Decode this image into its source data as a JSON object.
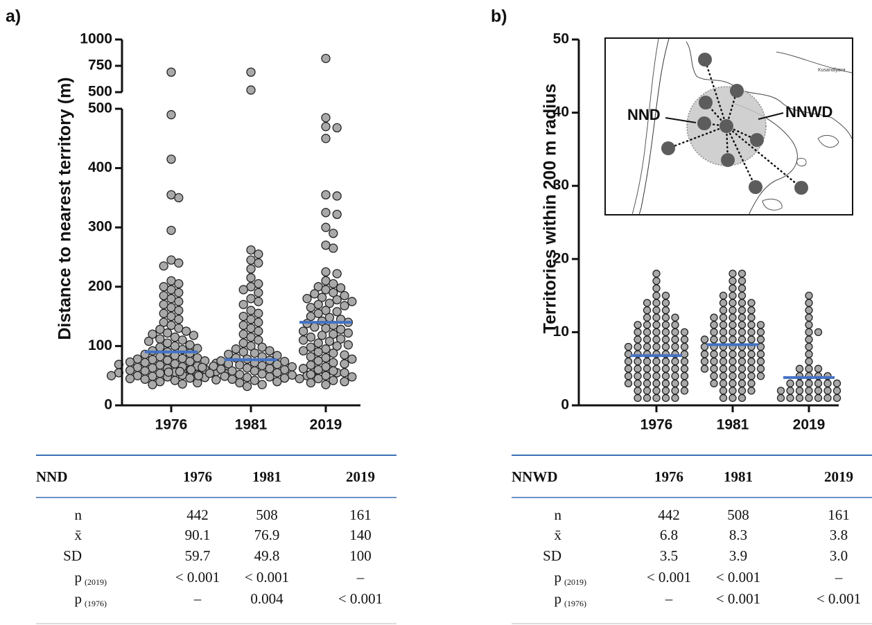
{
  "chart_data": [
    {
      "type": "swarm",
      "panel": "a)",
      "ylabel": "Distance to nearest territory (m)",
      "categories": [
        "1976",
        "1981",
        "2019"
      ],
      "ylim": [
        0,
        500
      ],
      "yticks": [
        0,
        100,
        200,
        300,
        400,
        500
      ],
      "ylim_upper": [
        500,
        1000
      ],
      "yticks_upper": [
        500,
        750,
        1000
      ],
      "point_color": "#a9a9a9",
      "mean_color": "#4472c4",
      "means": [
        90.1,
        76.9,
        140
      ],
      "values": [
        [
          690,
          490,
          415,
          355,
          350,
          295,
          245,
          240,
          235,
          210,
          205,
          200,
          195,
          190,
          185,
          180,
          175,
          170,
          165,
          160,
          155,
          150,
          145,
          140,
          135,
          130,
          128,
          125,
          122,
          120,
          118,
          115,
          112,
          110,
          108,
          105,
          102,
          100,
          98,
          96,
          94,
          92,
          90,
          88,
          86,
          84,
          82,
          80,
          79,
          78,
          77,
          76,
          75,
          74,
          73,
          72,
          71,
          70,
          69,
          68,
          67,
          66,
          65,
          64,
          63,
          62,
          61,
          60,
          59,
          58,
          57,
          56,
          55,
          54,
          53,
          52,
          51,
          50,
          50,
          49,
          48,
          47,
          46,
          45,
          44,
          43,
          42,
          40,
          38,
          36,
          35
        ],
        [
          690,
          520,
          262,
          255,
          245,
          240,
          230,
          215,
          205,
          200,
          195,
          190,
          180,
          175,
          170,
          160,
          155,
          150,
          145,
          140,
          135,
          130,
          125,
          120,
          115,
          110,
          105,
          100,
          98,
          95,
          92,
          90,
          88,
          86,
          84,
          82,
          80,
          78,
          76,
          75,
          74,
          72,
          70,
          69,
          68,
          67,
          66,
          65,
          64,
          63,
          62,
          62,
          61,
          60,
          60,
          59,
          58,
          58,
          57,
          56,
          56,
          55,
          55,
          54,
          53,
          52,
          51,
          50,
          50,
          49,
          48,
          47,
          46,
          45,
          44,
          42,
          40,
          38,
          35,
          32
        ],
        [
          820,
          485,
          470,
          468,
          450,
          355,
          353,
          325,
          322,
          300,
          290,
          270,
          265,
          225,
          222,
          210,
          205,
          200,
          198,
          195,
          190,
          188,
          185,
          182,
          180,
          178,
          175,
          172,
          170,
          168,
          165,
          160,
          158,
          155,
          150,
          148,
          145,
          142,
          140,
          138,
          135,
          132,
          130,
          128,
          125,
          122,
          120,
          118,
          115,
          112,
          110,
          108,
          105,
          102,
          100,
          98,
          95,
          92,
          90,
          88,
          85,
          82,
          80,
          78,
          75,
          72,
          70,
          68,
          65,
          62,
          60,
          58,
          55,
          52,
          50,
          48,
          45,
          42,
          40,
          38,
          35
        ]
      ]
    },
    {
      "type": "swarm",
      "panel": "b)",
      "ylabel": "Territories within 200 m radius",
      "categories": [
        "1976",
        "1981",
        "2019"
      ],
      "ylim": [
        0,
        50
      ],
      "yticks": [
        0,
        10,
        20,
        30,
        40,
        50
      ],
      "point_color": "#a9a9a9",
      "mean_color": "#4472c4",
      "means": [
        6.8,
        8.3,
        3.8
      ],
      "annotations": [
        "NND",
        "NNWD",
        "Kusandfjæra"
      ],
      "values": [
        [
          1,
          1,
          1,
          1,
          1,
          2,
          2,
          2,
          2,
          2,
          2,
          3,
          3,
          3,
          3,
          3,
          3,
          3,
          4,
          4,
          4,
          4,
          4,
          4,
          4,
          5,
          5,
          5,
          5,
          5,
          5,
          5,
          6,
          6,
          6,
          6,
          6,
          6,
          6,
          7,
          7,
          7,
          7,
          7,
          7,
          7,
          8,
          8,
          8,
          8,
          8,
          8,
          8,
          9,
          9,
          9,
          9,
          9,
          9,
          10,
          10,
          10,
          10,
          10,
          10,
          11,
          11,
          11,
          11,
          11,
          12,
          12,
          12,
          12,
          13,
          13,
          13,
          14,
          14,
          14,
          15,
          15,
          16,
          17,
          18
        ],
        [
          1,
          1,
          1,
          2,
          2,
          2,
          2,
          3,
          3,
          3,
          3,
          3,
          4,
          4,
          4,
          4,
          4,
          4,
          5,
          5,
          5,
          5,
          5,
          5,
          5,
          6,
          6,
          6,
          6,
          6,
          6,
          6,
          7,
          7,
          7,
          7,
          7,
          7,
          7,
          8,
          8,
          8,
          8,
          8,
          8,
          8,
          9,
          9,
          9,
          9,
          9,
          9,
          9,
          10,
          10,
          10,
          10,
          10,
          10,
          11,
          11,
          11,
          11,
          11,
          11,
          12,
          12,
          12,
          12,
          12,
          13,
          13,
          13,
          13,
          14,
          14,
          14,
          14,
          15,
          15,
          15,
          16,
          16,
          17,
          17,
          18,
          18
        ],
        [
          1,
          1,
          1,
          1,
          1,
          1,
          1,
          2,
          2,
          2,
          2,
          2,
          2,
          2,
          3,
          3,
          3,
          3,
          3,
          3,
          4,
          4,
          4,
          4,
          5,
          5,
          5,
          6,
          7,
          8,
          9,
          10,
          10,
          11,
          12,
          13,
          14,
          15
        ]
      ]
    }
  ],
  "tables": [
    {
      "header": [
        "NND",
        "1976",
        "1981",
        "2019"
      ],
      "rows": [
        {
          "label": "n",
          "cells": [
            "442",
            "508",
            "161"
          ]
        },
        {
          "label": "x̄",
          "cells": [
            "90.1",
            "76.9",
            "140"
          ]
        },
        {
          "label": "SD",
          "cells": [
            "59.7",
            "49.8",
            "100"
          ]
        },
        {
          "label": "p",
          "sub": "(2019)",
          "cells": [
            "< 0.001",
            "< 0.001",
            "–"
          ]
        },
        {
          "label": "p",
          "sub": "(1976)",
          "cells": [
            "–",
            "0.004",
            "< 0.001"
          ]
        }
      ]
    },
    {
      "header": [
        "NNWD",
        "1976",
        "1981",
        "2019"
      ],
      "rows": [
        {
          "label": "n",
          "cells": [
            "442",
            "508",
            "161"
          ]
        },
        {
          "label": "x̄",
          "cells": [
            "6.8",
            "8.3",
            "3.8"
          ]
        },
        {
          "label": "SD",
          "cells": [
            "3.5",
            "3.9",
            "3.0"
          ]
        },
        {
          "label": "p",
          "sub": "(2019)",
          "cells": [
            "< 0.001",
            "< 0.001",
            "–"
          ]
        },
        {
          "label": "p",
          "sub": "(1976)",
          "cells": [
            "–",
            "< 0.001",
            "< 0.001"
          ]
        }
      ]
    }
  ]
}
